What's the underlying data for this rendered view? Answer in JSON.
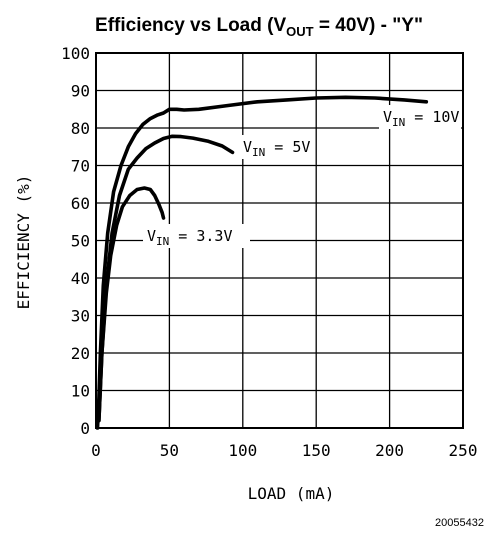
{
  "chart_data": {
    "type": "line",
    "title_parts": [
      "Efficiency vs Load (V",
      "OUT",
      " = 40V) - \"Y\""
    ],
    "xlabel": "LOAD (mA)",
    "ylabel": "EFFICIENCY (%)",
    "xlim": [
      0,
      250
    ],
    "ylim": [
      0,
      100
    ],
    "x_ticks": [
      0,
      50,
      100,
      150,
      200,
      250
    ],
    "y_ticks": [
      0,
      10,
      20,
      30,
      40,
      50,
      60,
      70,
      80,
      90,
      100
    ],
    "grid": true,
    "figure_id": "20055432",
    "series": [
      {
        "label_main": "V",
        "label_sub": "IN",
        "label_tail": " = 10V",
        "x": [
          1,
          2,
          3,
          5,
          8,
          12,
          17,
          22,
          27,
          32,
          37,
          42,
          46,
          50,
          55,
          60,
          70,
          90,
          110,
          130,
          150,
          170,
          190,
          210,
          225
        ],
        "y": [
          0,
          8,
          20,
          38,
          52,
          63,
          70,
          75,
          78.5,
          81,
          82.5,
          83.5,
          84,
          85,
          85,
          84.8,
          85,
          86,
          87,
          87.5,
          88,
          88.2,
          88,
          87.5,
          87
        ]
      },
      {
        "label_main": "V",
        "label_sub": "IN",
        "label_tail": " = 5V",
        "x": [
          2,
          4,
          7,
          11,
          16,
          22,
          28,
          34,
          40,
          46,
          52,
          58,
          66,
          76,
          86,
          93
        ],
        "y": [
          2,
          20,
          38,
          52,
          62,
          69,
          72,
          74.5,
          76,
          77.2,
          77.8,
          77.7,
          77.3,
          76.5,
          75.2,
          73.5
        ]
      },
      {
        "label_main": "V",
        "label_sub": "IN",
        "label_tail": " = 3.3V",
        "x": [
          2,
          4,
          7,
          10,
          14,
          18,
          23,
          28,
          33,
          37,
          40,
          43,
          45,
          46
        ],
        "y": [
          2,
          20,
          36,
          46,
          54,
          59,
          62,
          63.6,
          64,
          63.6,
          62,
          59.5,
          57.5,
          56
        ]
      }
    ]
  }
}
